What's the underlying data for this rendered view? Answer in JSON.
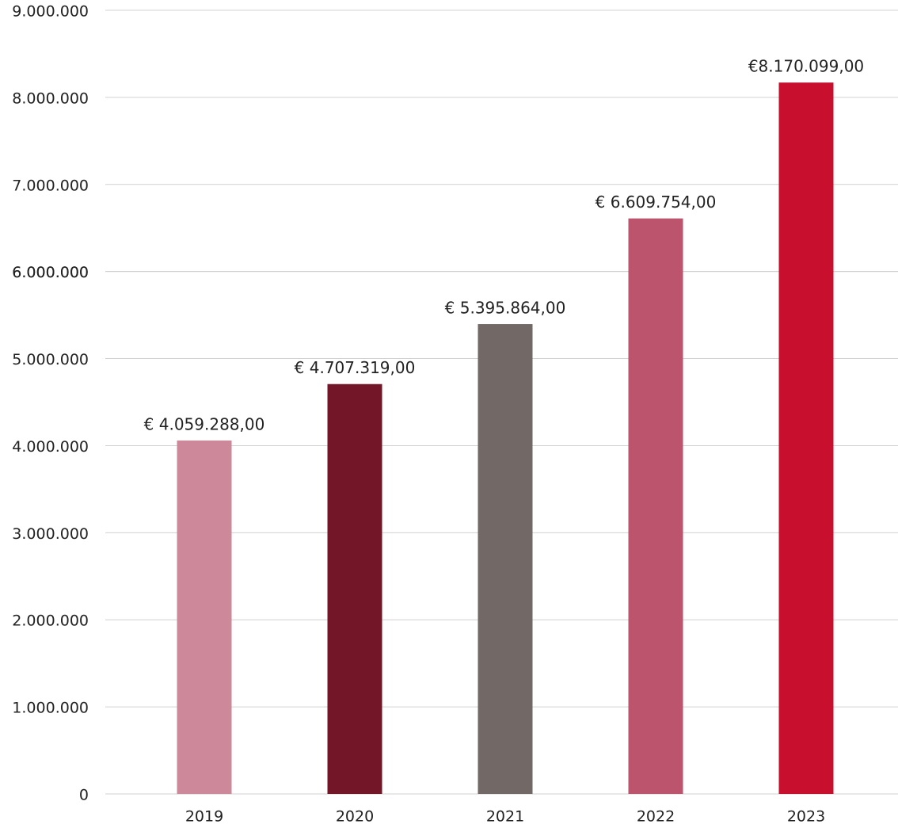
{
  "chart_data": {
    "type": "bar",
    "categories": [
      "2019",
      "2020",
      "2021",
      "2022",
      "2023"
    ],
    "values": [
      4059288,
      4707319,
      5395864,
      6609754,
      8170099
    ],
    "value_labels": [
      "€ 4.059.288,00",
      "€ 4.707.319,00",
      "€ 5.395.864,00",
      "€ 6.609.754,00",
      "€8.170.099,00"
    ],
    "colors": [
      "#cd8899",
      "#731627",
      "#726866",
      "#bc546e",
      "#c8102e"
    ],
    "ylim": [
      0,
      9000000
    ],
    "yticks": [
      0,
      {
        "value": 1000000,
        "label": "1.000.000"
      },
      {
        "value": 2000000,
        "label": "2.000.000"
      },
      {
        "value": 3000000,
        "label": "3.000.000"
      },
      {
        "value": 4000000,
        "label": "4.000.000"
      },
      {
        "value": 5000000,
        "label": "5.000.000"
      },
      {
        "value": 6000000,
        "label": "6.000.000"
      },
      {
        "value": 6000000,
        "label": "6.000.000"
      },
      {
        "value": 7000000,
        "label": "7.000.000"
      },
      {
        "value": 8000000,
        "label": "8.000.000"
      },
      {
        "value": 9000000,
        "label": "9.000.000"
      }
    ],
    "grid": true
  }
}
